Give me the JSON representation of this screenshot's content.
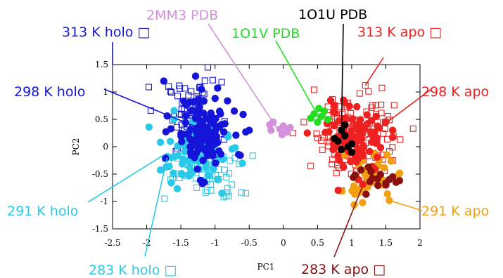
{
  "chart_data": {
    "type": "scatter",
    "title": "",
    "xlabel": "PC1",
    "ylabel": "PC2",
    "xlim": [
      -2.5,
      2
    ],
    "ylim": [
      -1.5,
      1.5
    ],
    "xticks": [
      -2.5,
      -2,
      -1.5,
      -1,
      -0.5,
      0,
      0.5,
      1,
      1.5,
      2
    ],
    "yticks": [
      1.5,
      1,
      0.5,
      0,
      -0.5,
      -1,
      -1.5
    ],
    "xtick_labels": [
      "-2.5",
      "-2",
      "-1.5",
      "-1",
      "-0.5",
      "0",
      "0.5",
      "1",
      "1.5",
      "2"
    ],
    "ytick_labels": [
      "1.5",
      "1",
      "0.5",
      "0",
      "-0.5",
      "-1",
      "-1.5"
    ],
    "grid": false,
    "series": [
      {
        "name": "313 K holo",
        "label": "313 K holo □",
        "color": "#1515d9",
        "marker": "open-square",
        "center": [
          -1.3,
          0.5
        ],
        "spread": [
          0.28,
          0.5
        ],
        "count": 70,
        "points": [
          [
            -1.97,
            1.09
          ],
          [
            -1.68,
            1.1
          ],
          [
            -1.94,
            0.66
          ],
          [
            -1.6,
            0.55
          ],
          [
            -1.45,
            0.32
          ],
          [
            -1.2,
            0.05
          ],
          [
            -1.0,
            -0.25
          ]
        ]
      },
      {
        "name": "298 K holo",
        "label": "298 K holo",
        "color": "#1515d9",
        "marker": "filled-circle",
        "center": [
          -1.2,
          0.25
        ],
        "spread": [
          0.3,
          0.5
        ],
        "count": 120,
        "points": [
          [
            -1.75,
            1.2
          ],
          [
            -1.2,
            1.05
          ],
          [
            -0.5,
            0.3
          ],
          [
            -1.0,
            0.05
          ],
          [
            -1.3,
            -0.2
          ],
          [
            -0.55,
            0.27
          ]
        ]
      },
      {
        "name": "291 K holo",
        "label": "291 K holo",
        "color": "#2bc9e8",
        "marker": "filled-circle",
        "center": [
          -1.3,
          -0.1
        ],
        "spread": [
          0.35,
          0.4
        ],
        "count": 80,
        "points": [
          [
            -1.8,
            0.08
          ],
          [
            -1.4,
            -0.25
          ],
          [
            -0.6,
            -0.3
          ],
          [
            -1.6,
            0.5
          ],
          [
            -0.9,
            -0.85
          ]
        ]
      },
      {
        "name": "283 K holo",
        "label": "283 K holo □",
        "color": "#2bc9e8",
        "marker": "open-square",
        "center": [
          -1.1,
          -0.45
        ],
        "spread": [
          0.35,
          0.35
        ],
        "count": 60,
        "points": [
          [
            -1.68,
            -0.28
          ],
          [
            -1.65,
            -0.6
          ],
          [
            -1.74,
            -0.95
          ],
          [
            -0.55,
            -0.85
          ],
          [
            -0.8,
            -0.9
          ]
        ]
      },
      {
        "name": "313 K apo",
        "label": "313 K apo □",
        "color": "#ee2020",
        "marker": "open-square",
        "center": [
          1.05,
          0.3
        ],
        "spread": [
          0.4,
          0.55
        ],
        "count": 120,
        "points": [
          [
            1.2,
            1.12
          ],
          [
            0.4,
            -0.35
          ],
          [
            0.3,
            0.45
          ],
          [
            1.9,
            0.33
          ],
          [
            1.6,
            -0.25
          ],
          [
            0.85,
            -0.8
          ],
          [
            0.45,
            1.04
          ]
        ]
      },
      {
        "name": "298 K apo",
        "label": "298 K apo",
        "color": "#ee2020",
        "marker": "filled-circle",
        "center": [
          1.05,
          0.15
        ],
        "spread": [
          0.3,
          0.45
        ],
        "count": 90,
        "points": [
          [
            0.88,
            0.85
          ],
          [
            0.35,
            0.25
          ],
          [
            1.6,
            0.3
          ],
          [
            1.5,
            0.45
          ],
          [
            1.1,
            -0.6
          ]
        ]
      },
      {
        "name": "291 K apo",
        "label": "291 K apo",
        "color": "#f0a010",
        "marker": "filled-circle",
        "center": [
          1.25,
          -0.55
        ],
        "spread": [
          0.25,
          0.3
        ],
        "count": 55,
        "points": [
          [
            1.55,
            -0.98
          ],
          [
            1.45,
            -0.7
          ],
          [
            1.05,
            -0.85
          ],
          [
            0.9,
            -0.15
          ]
        ]
      },
      {
        "name": "283 K apo",
        "label": "283 K apo □",
        "color": "#8a1010",
        "marker": "filled-circle",
        "center": [
          1.35,
          -0.6
        ],
        "spread": [
          0.2,
          0.15
        ],
        "count": 12,
        "points": [
          [
            1.55,
            -0.6
          ],
          [
            1.65,
            -0.65
          ],
          [
            1.6,
            -0.55
          ],
          [
            1.7,
            -0.62
          ],
          [
            1.5,
            -0.7
          ]
        ]
      },
      {
        "name": "2MM3 PDB",
        "label": "2MM3 PDB",
        "color": "#d490dd",
        "marker": "filled-circle",
        "points": [
          [
            -0.2,
            0.4
          ],
          [
            -0.15,
            0.45
          ],
          [
            -0.05,
            0.32
          ],
          [
            0.05,
            0.27
          ],
          [
            0.1,
            0.35
          ],
          [
            -0.02,
            0.22
          ],
          [
            0.0,
            0.38
          ],
          [
            -0.18,
            0.3
          ]
        ]
      },
      {
        "name": "1O1V PDB",
        "label": "1O1V PDB",
        "color": "#22dd22",
        "marker": "filled-circle",
        "points": [
          [
            0.45,
            0.6
          ],
          [
            0.55,
            0.55
          ],
          [
            0.6,
            0.65
          ],
          [
            0.5,
            0.45
          ],
          [
            0.65,
            0.5
          ],
          [
            0.52,
            0.7
          ],
          [
            0.4,
            0.52
          ]
        ]
      },
      {
        "name": "1O1U PDB",
        "label": "1O1U PDB",
        "color": "#000000",
        "marker": "filled-circle",
        "points": [
          [
            0.85,
            0.3
          ],
          [
            0.9,
            0.2
          ],
          [
            0.8,
            0.1
          ],
          [
            0.95,
            0.0
          ],
          [
            1.0,
            0.05
          ],
          [
            0.85,
            -0.05
          ],
          [
            0.75,
            0.15
          ],
          [
            1.0,
            -0.1
          ],
          [
            0.9,
            0.4
          ]
        ]
      }
    ]
  },
  "annotations": [
    {
      "series": "313 K holo",
      "text": "313 K holo □",
      "color": "#1515d9"
    },
    {
      "series": "298 K holo",
      "text": "298 K holo",
      "color": "#1515d9"
    },
    {
      "series": "291 K holo",
      "text": "291 K holo",
      "color": "#2bc9e8"
    },
    {
      "series": "283 K holo",
      "text": "283 K holo □",
      "color": "#2bc9e8"
    },
    {
      "series": "2MM3 PDB",
      "text": "2MM3 PDB",
      "color": "#d490dd"
    },
    {
      "series": "1O1V PDB",
      "text": "1O1V PDB",
      "color": "#22dd22"
    },
    {
      "series": "1O1U PDB",
      "text": "1O1U PDB",
      "color": "#000000"
    },
    {
      "series": "313 K apo",
      "text": "313 K apo □",
      "color": "#ee2020"
    },
    {
      "series": "298 K apo",
      "text": "298 K apo",
      "color": "#ee2020"
    },
    {
      "series": "291 K apo",
      "text": "291 K apo",
      "color": "#f0a010"
    },
    {
      "series": "283 K apo",
      "text": "283 K apo □",
      "color": "#8a1010"
    }
  ]
}
